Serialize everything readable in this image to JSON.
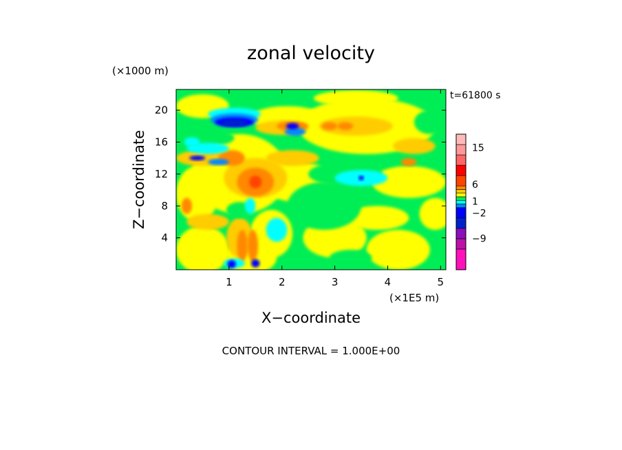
{
  "chart_data": {
    "type": "heatmap",
    "title": "zonal velocity",
    "time_label": "t=61800 s",
    "xlabel": "X−coordinate",
    "ylabel": "Z−coordinate",
    "x_unit": "(×1E5 m)",
    "y_unit": "(×1000 m)",
    "xlim": [
      0,
      5.1
    ],
    "ylim": [
      0,
      22.6
    ],
    "x_ticks": [
      {
        "v": 1,
        "label": "1"
      },
      {
        "v": 2,
        "label": "2"
      },
      {
        "v": 3,
        "label": "3"
      },
      {
        "v": 4,
        "label": "4"
      },
      {
        "v": 5,
        "label": "5"
      }
    ],
    "y_ticks": [
      {
        "v": 4,
        "label": "4"
      },
      {
        "v": 8,
        "label": "8"
      },
      {
        "v": 12,
        "label": "12"
      },
      {
        "v": 16,
        "label": "16"
      },
      {
        "v": 20,
        "label": "20"
      }
    ],
    "background_color": "#00ee55",
    "footer": "CONTOUR INTERVAL = 1.000E+00",
    "colorbar": {
      "colors": [
        "#ff11bb",
        "#bb11aa",
        "#8811bb",
        "#0022cc",
        "#0000ff",
        "#0088ff",
        "#00ffff",
        "#00ee55",
        "#ffff00",
        "#ffcc00",
        "#ff8800",
        "#ff4400",
        "#ff0000",
        "#ff6666",
        "#ff9999",
        "#ffbbbb"
      ],
      "weights": [
        2,
        1,
        1,
        1,
        1,
        0.35,
        0.35,
        0.35,
        0.35,
        0.35,
        0.35,
        1,
        1,
        1,
        1,
        1
      ],
      "tick_labels": [
        {
          "label": "15",
          "pos": 0.1
        },
        {
          "label": "6",
          "pos": 0.37
        },
        {
          "label": "1",
          "pos": 0.495
        },
        {
          "label": "−2",
          "pos": 0.58
        },
        {
          "label": "−9",
          "pos": 0.77
        }
      ]
    },
    "regions": [
      {
        "color": "#ffff00",
        "x": 0.5,
        "z": 2.5,
        "rx": 0.5,
        "rz": 3
      },
      {
        "color": "#ffff00",
        "x": 1.4,
        "z": 1.5,
        "rx": 0.5,
        "rz": 2
      },
      {
        "color": "#ffff00",
        "x": 0.4,
        "z": 9.5,
        "rx": 0.4,
        "rz": 3.5
      },
      {
        "color": "#ffff00",
        "x": 1.2,
        "z": 12,
        "rx": 0.9,
        "rz": 5
      },
      {
        "color": "#ffff00",
        "x": 2.3,
        "z": 11,
        "rx": 0.7,
        "rz": 2.5
      },
      {
        "color": "#ffff00",
        "x": 3.0,
        "z": 4,
        "rx": 0.6,
        "rz": 2.5
      },
      {
        "color": "#ffff00",
        "x": 1.8,
        "z": 4.5,
        "rx": 0.4,
        "rz": 3
      },
      {
        "color": "#ffff00",
        "x": 3.6,
        "z": 18,
        "rx": 1.3,
        "rz": 3.5
      },
      {
        "color": "#ffff00",
        "x": 4.4,
        "z": 11,
        "rx": 0.7,
        "rz": 2
      },
      {
        "color": "#ffff00",
        "x": 4.2,
        "z": 2.5,
        "rx": 0.6,
        "rz": 2.5
      },
      {
        "color": "#ffff00",
        "x": 3.8,
        "z": 6.5,
        "rx": 0.6,
        "rz": 1.5
      },
      {
        "color": "#ffff00",
        "x": 2.1,
        "z": 19,
        "rx": 0.7,
        "rz": 1.5
      },
      {
        "color": "#ffff00",
        "x": 0.5,
        "z": 20.5,
        "rx": 0.5,
        "rz": 1.5
      },
      {
        "color": "#ffff00",
        "x": 4.9,
        "z": 7,
        "rx": 0.3,
        "rz": 2
      },
      {
        "color": "#ffff00",
        "x": 3.4,
        "z": 21.5,
        "rx": 0.8,
        "rz": 1
      },
      {
        "color": "#ffcc00",
        "x": 0.5,
        "z": 14,
        "rx": 0.5,
        "rz": 1
      },
      {
        "color": "#ffcc00",
        "x": 1.5,
        "z": 11.5,
        "rx": 0.6,
        "rz": 2.5
      },
      {
        "color": "#ffcc00",
        "x": 2.2,
        "z": 14,
        "rx": 0.5,
        "rz": 1
      },
      {
        "color": "#ffcc00",
        "x": 3.4,
        "z": 18,
        "rx": 0.7,
        "rz": 1.2
      },
      {
        "color": "#ffcc00",
        "x": 4.5,
        "z": 15.5,
        "rx": 0.4,
        "rz": 1
      },
      {
        "color": "#ffcc00",
        "x": 0.6,
        "z": 6,
        "rx": 0.4,
        "rz": 1
      },
      {
        "color": "#ffcc00",
        "x": 1.2,
        "z": 4,
        "rx": 0.25,
        "rz": 2.5
      },
      {
        "color": "#ffcc00",
        "x": 2.0,
        "z": 17.8,
        "rx": 0.5,
        "rz": 0.9
      },
      {
        "color": "#ff8800",
        "x": 1.5,
        "z": 11,
        "rx": 0.35,
        "rz": 1.8
      },
      {
        "color": "#ff8800",
        "x": 1.05,
        "z": 14,
        "rx": 0.25,
        "rz": 1
      },
      {
        "color": "#ff8800",
        "x": 2.2,
        "z": 18,
        "rx": 0.3,
        "rz": 0.6
      },
      {
        "color": "#ff8800",
        "x": 2.9,
        "z": 18,
        "rx": 0.15,
        "rz": 0.5
      },
      {
        "color": "#ff8800",
        "x": 3.2,
        "z": 18,
        "rx": 0.15,
        "rz": 0.5
      },
      {
        "color": "#ff8800",
        "x": 4.4,
        "z": 13.5,
        "rx": 0.15,
        "rz": 0.5
      },
      {
        "color": "#ff8800",
        "x": 0.2,
        "z": 8,
        "rx": 0.1,
        "rz": 1
      },
      {
        "color": "#ff8800",
        "x": 1.25,
        "z": 3,
        "rx": 0.1,
        "rz": 2
      },
      {
        "color": "#ff8800",
        "x": 1.45,
        "z": 3,
        "rx": 0.1,
        "rz": 2
      },
      {
        "color": "#ff4400",
        "x": 1.5,
        "z": 11,
        "rx": 0.12,
        "rz": 0.8
      },
      {
        "color": "#00ee55",
        "x": 2.8,
        "z": 8,
        "rx": 0.7,
        "rz": 3
      },
      {
        "color": "#00ee55",
        "x": 3.2,
        "z": 12,
        "rx": 0.7,
        "rz": 1.5
      },
      {
        "color": "#00ee55",
        "x": 0.6,
        "z": 16.5,
        "rx": 0.5,
        "rz": 1
      },
      {
        "color": "#00ee55",
        "x": 4.8,
        "z": 18.5,
        "rx": 0.3,
        "rz": 1.5
      },
      {
        "color": "#00ee55",
        "x": 1.2,
        "z": 7.5,
        "rx": 0.25,
        "rz": 1
      },
      {
        "color": "#00ee55",
        "x": 3.3,
        "z": 1.5,
        "rx": 0.4,
        "rz": 1
      },
      {
        "color": "#00ffff",
        "x": 1.9,
        "z": 5,
        "rx": 0.2,
        "rz": 1.5
      },
      {
        "color": "#00ffff",
        "x": 3.5,
        "z": 11.5,
        "rx": 0.5,
        "rz": 1
      },
      {
        "color": "#00ffff",
        "x": 0.6,
        "z": 15.2,
        "rx": 0.4,
        "rz": 0.7
      },
      {
        "color": "#00ffff",
        "x": 1.1,
        "z": 19.5,
        "rx": 0.5,
        "rz": 0.8
      },
      {
        "color": "#00ffff",
        "x": 0.3,
        "z": 16,
        "rx": 0.15,
        "rz": 0.6
      },
      {
        "color": "#00ffff",
        "x": 1.1,
        "z": 0.8,
        "rx": 0.2,
        "rz": 0.6
      },
      {
        "color": "#00ffff",
        "x": 1.4,
        "z": 8,
        "rx": 0.1,
        "rz": 1
      },
      {
        "color": "#0088ff",
        "x": 1.1,
        "z": 18.8,
        "rx": 0.45,
        "rz": 0.8
      },
      {
        "color": "#0088ff",
        "x": 2.25,
        "z": 17.3,
        "rx": 0.2,
        "rz": 0.5
      },
      {
        "color": "#0088ff",
        "x": 0.8,
        "z": 13.5,
        "rx": 0.2,
        "rz": 0.4
      },
      {
        "color": "#0000ff",
        "x": 1.1,
        "z": 18.5,
        "rx": 0.37,
        "rz": 0.6
      },
      {
        "color": "#0000ff",
        "x": 2.2,
        "z": 18,
        "rx": 0.12,
        "rz": 0.4
      },
      {
        "color": "#0000ff",
        "x": 0.4,
        "z": 14,
        "rx": 0.15,
        "rz": 0.3
      },
      {
        "color": "#0000ff",
        "x": 1.05,
        "z": 0.7,
        "rx": 0.08,
        "rz": 0.5
      },
      {
        "color": "#0000ff",
        "x": 1.5,
        "z": 0.8,
        "rx": 0.08,
        "rz": 0.5
      },
      {
        "color": "#0000ff",
        "x": 3.5,
        "z": 11.5,
        "rx": 0.05,
        "rz": 0.3
      },
      {
        "color": "#0022cc",
        "x": 1.1,
        "z": 18.4,
        "rx": 0.26,
        "rz": 0.4
      }
    ]
  }
}
